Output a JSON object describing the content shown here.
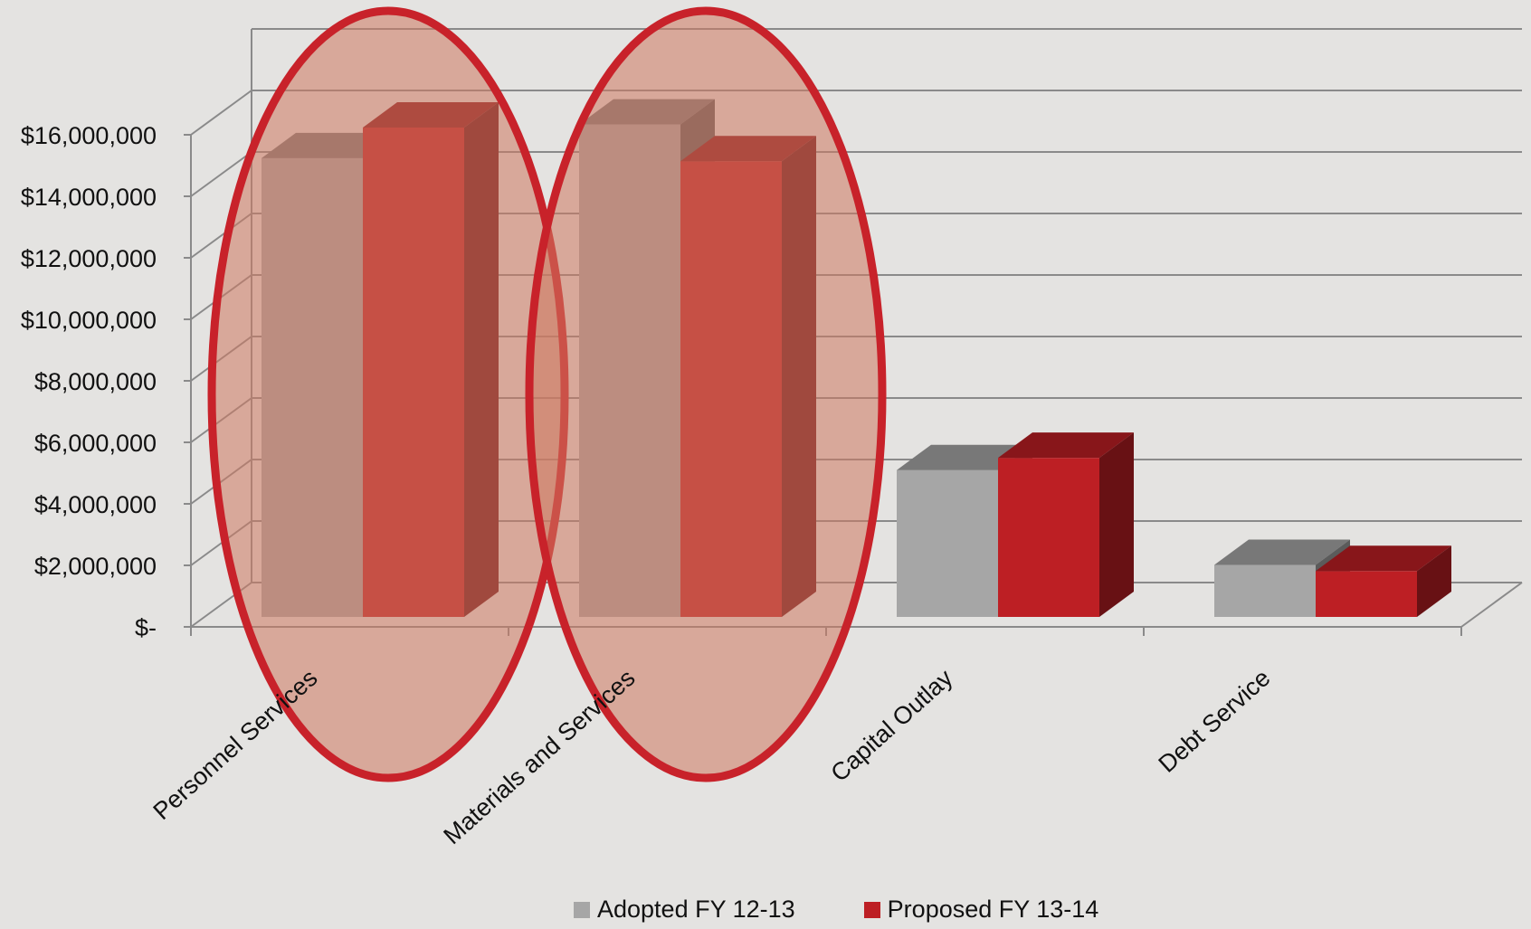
{
  "chart_data": {
    "type": "bar",
    "categories": [
      "Personnel Services",
      "Materials and Services",
      "Capital Outlay",
      "Debt Service"
    ],
    "series": [
      {
        "name": "Adopted FY 12-13",
        "color": "#a6a6a6",
        "values": [
          15000000,
          16100000,
          4800000,
          1700000
        ]
      },
      {
        "name": "Proposed FY 13-14",
        "color": "#bd1f24",
        "values": [
          16000000,
          14900000,
          5200000,
          1500000
        ]
      }
    ],
    "ylim": [
      0,
      16000000
    ],
    "y_ticks": [
      "$-",
      "$2,000,000",
      "$4,000,000",
      "$6,000,000",
      "$8,000,000",
      "$10,000,000",
      "$12,000,000",
      "$14,000,000",
      "$16,000,000"
    ],
    "y_tick_values": [
      0,
      2000000,
      4000000,
      6000000,
      8000000,
      10000000,
      12000000,
      14000000,
      16000000
    ],
    "highlighted_categories": [
      "Personnel Services",
      "Materials and Services"
    ],
    "highlight_color": "#c8222a",
    "grid": true,
    "legend_position": "bottom",
    "style": "3d-clustered-column"
  }
}
